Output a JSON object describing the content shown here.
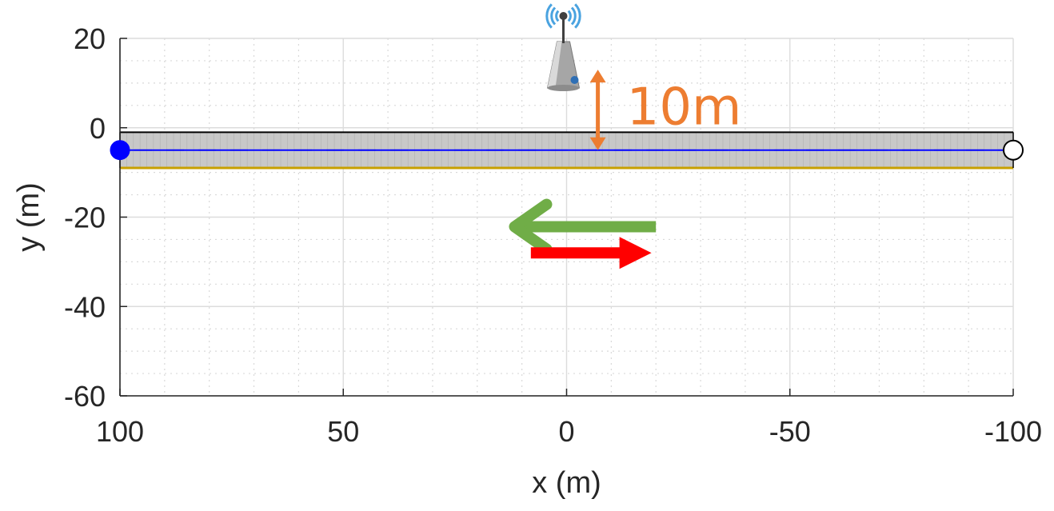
{
  "chart_data": {
    "type": "scatter",
    "title": "",
    "xlabel": "x (m)",
    "ylabel": "y (m)",
    "xlim": [
      100,
      -100
    ],
    "x_reversed": true,
    "ylim": [
      -60,
      20
    ],
    "grid": "major and minor",
    "x_ticks": [
      100,
      50,
      0,
      -50,
      -100
    ],
    "x_tick_labels": [
      "100",
      "50",
      "0",
      "-50",
      "-100"
    ],
    "y_ticks": [
      20,
      0,
      -20,
      -40,
      -60
    ],
    "y_tick_labels": [
      "20",
      "0",
      "-20",
      "-40",
      "-60"
    ],
    "road": {
      "x_start": 100,
      "x_end": -100,
      "y_top": -1,
      "y_bottom": -9,
      "centerline_y": -5,
      "fill": "#c8c8c8",
      "edge": "#c8a000"
    },
    "vehicle_path": {
      "x": [
        100,
        -100
      ],
      "y": [
        -5,
        -5
      ],
      "color": "#0000ff"
    },
    "start_marker": {
      "x": 100,
      "y": -5,
      "style": "filled circle",
      "color": "#0000ff"
    },
    "end_marker": {
      "x": -100,
      "y": -5,
      "style": "open circle",
      "color": "#000000"
    },
    "base_station": {
      "x": 0,
      "y": 20,
      "icon": "antenna-tower-icon"
    },
    "annotations": [
      {
        "text": "10m",
        "color": "#ed7d31",
        "kind": "double-arrow",
        "x": -7,
        "y_from": 13,
        "y_to": -5
      },
      {
        "text": "",
        "color": "#70ad47",
        "kind": "arrow",
        "x_from": -20,
        "x_to": 12,
        "y": -20
      },
      {
        "text": "",
        "color": "#ff0000",
        "kind": "arrow",
        "x_from": 8,
        "x_to": -19,
        "y": -28
      }
    ]
  }
}
